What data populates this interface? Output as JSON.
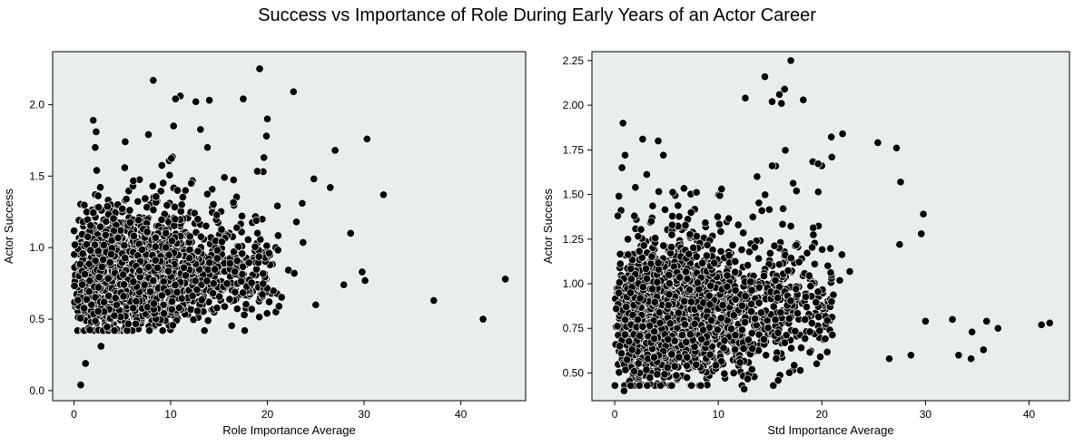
{
  "title": "Success vs Importance of Role During Early Years of an Actor Career",
  "style": {
    "background": "#e8eeee",
    "marker_fill": "#000000",
    "marker_edge": "#ffffff"
  },
  "chart_data": [
    {
      "type": "scatter",
      "title": "",
      "xlabel": "Role Importance Average",
      "ylabel": "Actor Success",
      "xlim": [
        -2.2,
        46.7
      ],
      "ylim": [
        -0.07,
        2.37
      ],
      "xticks": [
        0,
        10,
        20,
        30,
        40
      ],
      "yticks": [
        0.0,
        0.5,
        1.0,
        1.5,
        2.0
      ],
      "xtick_labels": [
        "0",
        "10",
        "20",
        "30",
        "40"
      ],
      "ytick_labels": [
        "0.0",
        "0.5",
        "1.0",
        "1.5",
        "2.0"
      ],
      "grid": false,
      "seed": 11,
      "cloud_count": 2300,
      "points": [
        [
          0.7,
          0.04
        ],
        [
          1.2,
          0.19
        ],
        [
          2.8,
          0.31
        ],
        [
          8.2,
          2.17
        ],
        [
          19.2,
          2.25
        ],
        [
          22.7,
          2.09
        ],
        [
          11.0,
          2.06
        ],
        [
          10.5,
          2.04
        ],
        [
          12.6,
          2.02
        ],
        [
          14.0,
          2.03
        ],
        [
          17.5,
          2.04
        ],
        [
          27.0,
          1.68
        ],
        [
          30.3,
          1.76
        ],
        [
          28.6,
          1.1
        ],
        [
          32.0,
          1.37
        ],
        [
          25.0,
          0.6
        ],
        [
          29.8,
          0.83
        ],
        [
          30.1,
          0.77
        ],
        [
          37.2,
          0.63
        ],
        [
          42.3,
          0.5
        ],
        [
          44.6,
          0.78
        ],
        [
          26.5,
          1.42
        ],
        [
          24.8,
          1.48
        ],
        [
          23.6,
          1.31
        ],
        [
          27.9,
          0.74
        ],
        [
          23.0,
          1.18
        ],
        [
          21.2,
          0.59
        ],
        [
          2.0,
          1.89
        ],
        [
          2.3,
          1.81
        ],
        [
          5.3,
          1.74
        ],
        [
          7.7,
          1.79
        ],
        [
          10.3,
          1.85
        ],
        [
          13.8,
          1.7
        ],
        [
          19.9,
          1.78
        ],
        [
          2.2,
          1.7
        ],
        [
          0.1,
          1.02
        ]
      ]
    },
    {
      "type": "scatter",
      "title": "",
      "xlabel": "Std Importance Average",
      "ylabel": "Actor Success",
      "xlim": [
        -2.2,
        43.9
      ],
      "ylim": [
        0.345,
        2.3
      ],
      "xticks": [
        0,
        10,
        20,
        30,
        40
      ],
      "yticks": [
        0.5,
        0.75,
        1.0,
        1.25,
        1.5,
        1.75,
        2.0,
        2.25
      ],
      "xtick_labels": [
        "0",
        "10",
        "20",
        "30",
        "40"
      ],
      "ytick_labels": [
        "0.50",
        "0.75",
        "1.00",
        "1.25",
        "1.50",
        "1.75",
        "2.00",
        "2.25"
      ],
      "grid": false,
      "seed": 23,
      "cloud_count": 2300,
      "points": [
        [
          17.0,
          2.25
        ],
        [
          14.5,
          2.16
        ],
        [
          16.4,
          2.09
        ],
        [
          12.6,
          2.04
        ],
        [
          15.2,
          2.02
        ],
        [
          15.9,
          2.06
        ],
        [
          16.1,
          2.01
        ],
        [
          18.2,
          2.03
        ],
        [
          0.8,
          1.9
        ],
        [
          2.7,
          1.81
        ],
        [
          4.2,
          1.8
        ],
        [
          4.7,
          1.72
        ],
        [
          25.4,
          1.79
        ],
        [
          27.2,
          1.76
        ],
        [
          29.8,
          1.39
        ],
        [
          29.6,
          1.28
        ],
        [
          27.5,
          1.22
        ],
        [
          27.6,
          1.57
        ],
        [
          32.6,
          0.8
        ],
        [
          33.2,
          0.6
        ],
        [
          34.4,
          0.58
        ],
        [
          34.5,
          0.73
        ],
        [
          35.6,
          0.63
        ],
        [
          35.9,
          0.79
        ],
        [
          37.0,
          0.75
        ],
        [
          41.2,
          0.77
        ],
        [
          42.0,
          0.78
        ],
        [
          30.0,
          0.79
        ],
        [
          28.6,
          0.6
        ],
        [
          26.5,
          0.58
        ],
        [
          0.3,
          1.38
        ],
        [
          0.7,
          1.65
        ],
        [
          1.0,
          1.72
        ],
        [
          2.0,
          1.54
        ],
        [
          12.5,
          0.41
        ],
        [
          0.9,
          0.4
        ],
        [
          0.4,
          1.49
        ],
        [
          22.0,
          1.84
        ],
        [
          1.9,
          1.38
        ]
      ]
    }
  ]
}
